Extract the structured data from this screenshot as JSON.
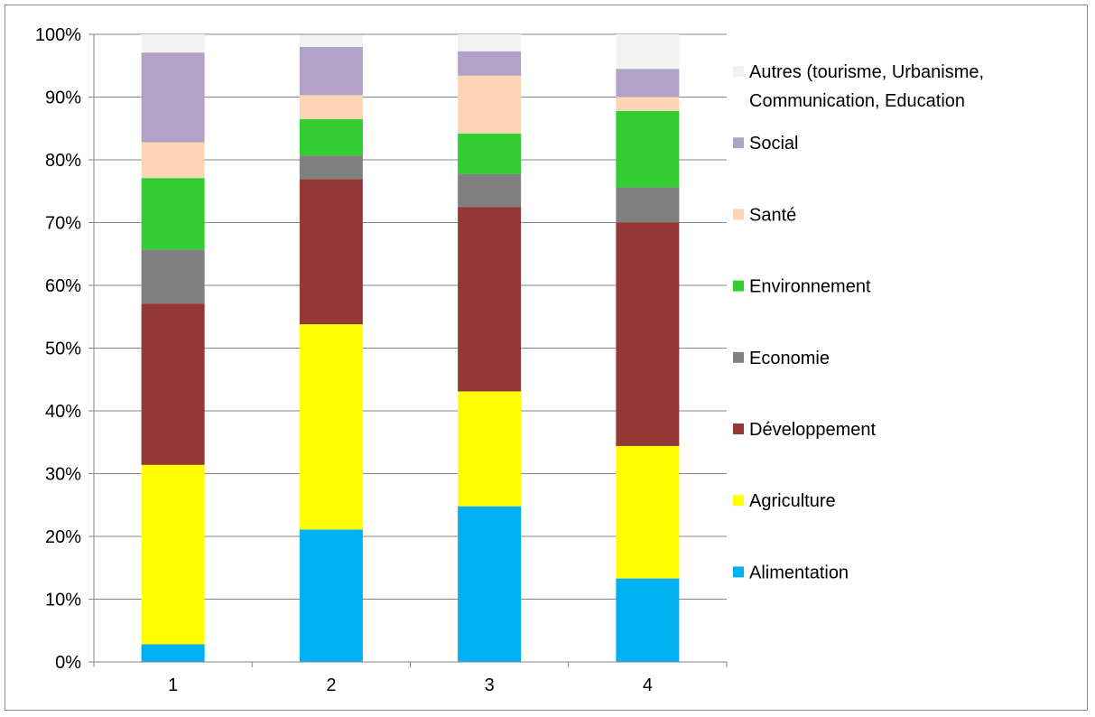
{
  "chart_data": {
    "type": "bar",
    "stacked": true,
    "percent_stacked": true,
    "categories": [
      "1",
      "2",
      "3",
      "4"
    ],
    "ylim": [
      0,
      100
    ],
    "yticks": [
      "0%",
      "10%",
      "20%",
      "30%",
      "40%",
      "50%",
      "60%",
      "70%",
      "80%",
      "90%",
      "100%"
    ],
    "grid": true,
    "legend_position": "right",
    "series": [
      {
        "name": "Alimentation",
        "color": "#00B0F0",
        "values": [
          2.8,
          21.1,
          24.8,
          13.3
        ]
      },
      {
        "name": "Agriculture",
        "color": "#FFFF00",
        "values": [
          28.6,
          32.7,
          18.3,
          21.1
        ]
      },
      {
        "name": "Développement",
        "color": "#953735",
        "values": [
          25.7,
          23.1,
          29.4,
          35.6
        ]
      },
      {
        "name": "Economie",
        "color": "#808080",
        "values": [
          8.6,
          3.8,
          5.2,
          5.6
        ]
      },
      {
        "name": "Environnement",
        "color": "#33CC33",
        "values": [
          11.4,
          5.8,
          6.5,
          12.2
        ]
      },
      {
        "name": "Santé",
        "color": "#FCD5B5",
        "values": [
          5.7,
          3.8,
          9.2,
          2.2
        ]
      },
      {
        "name": "Social",
        "color": "#B3A2C7",
        "values": [
          14.3,
          7.7,
          3.9,
          4.5
        ]
      },
      {
        "name": "Autres (tourisme, Urbanisme,\nCommunication, Education",
        "label_lines": [
          "Autres (tourisme, Urbanisme,",
          "Communication, Education"
        ],
        "color": "#F2F2F2",
        "values": [
          2.9,
          1.9,
          2.7,
          5.5
        ]
      }
    ]
  }
}
